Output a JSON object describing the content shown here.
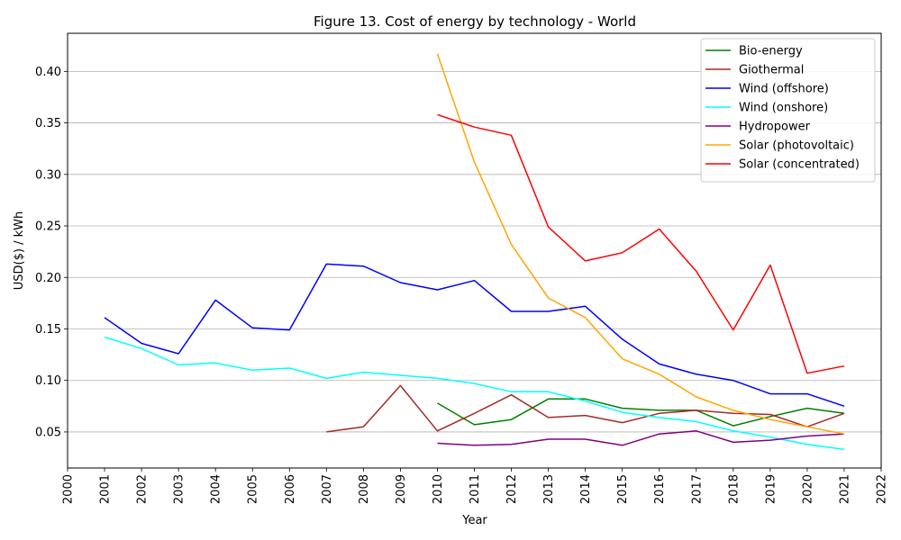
{
  "chart_data": {
    "type": "line",
    "title": "Figure 13. Cost of energy by technology - World",
    "xlabel": "Year",
    "ylabel": "USD($) / kWh",
    "xlim": [
      2000,
      2022
    ],
    "ylim": [
      0.015,
      0.437
    ],
    "x_ticks": [
      "2000",
      "2001",
      "2002",
      "2003",
      "2004",
      "2005",
      "2006",
      "2007",
      "2008",
      "2009",
      "2010",
      "2011",
      "2012",
      "2013",
      "2014",
      "2015",
      "2016",
      "2017",
      "2018",
      "2019",
      "2020",
      "2021",
      "2022"
    ],
    "y_ticks": [
      "0.05",
      "0.10",
      "0.15",
      "0.20",
      "0.25",
      "0.30",
      "0.35",
      "0.40"
    ],
    "grid": "horizontal",
    "legend_position": "top-right",
    "series": [
      {
        "name": "Bio-energy",
        "color": "#008000",
        "points": [
          [
            2010,
            0.078
          ],
          [
            2011,
            0.057
          ],
          [
            2012,
            0.062
          ],
          [
            2013,
            0.082
          ],
          [
            2014,
            0.082
          ],
          [
            2015,
            0.073
          ],
          [
            2016,
            0.071
          ],
          [
            2017,
            0.071
          ],
          [
            2018,
            0.056
          ],
          [
            2019,
            0.065
          ],
          [
            2020,
            0.073
          ],
          [
            2021,
            0.068
          ]
        ]
      },
      {
        "name": "Giothermal",
        "color": "#a52a2a",
        "points": [
          [
            2007,
            0.05
          ],
          [
            2008,
            0.055
          ],
          [
            2009,
            0.095
          ],
          [
            2010,
            0.051
          ],
          [
            2011,
            0.068
          ],
          [
            2012,
            0.086
          ],
          [
            2013,
            0.064
          ],
          [
            2014,
            0.066
          ],
          [
            2015,
            0.059
          ],
          [
            2016,
            0.068
          ],
          [
            2017,
            0.071
          ],
          [
            2018,
            0.068
          ],
          [
            2019,
            0.067
          ],
          [
            2020,
            0.055
          ],
          [
            2021,
            0.068
          ]
        ]
      },
      {
        "name": "Wind (offshore)",
        "color": "#0000ff",
        "points": [
          [
            2001,
            0.161
          ],
          [
            2002,
            0.136
          ],
          [
            2003,
            0.126
          ],
          [
            2004,
            0.178
          ],
          [
            2005,
            0.151
          ],
          [
            2006,
            0.149
          ],
          [
            2007,
            0.213
          ],
          [
            2008,
            0.211
          ],
          [
            2009,
            0.195
          ],
          [
            2010,
            0.188
          ],
          [
            2011,
            0.197
          ],
          [
            2012,
            0.167
          ],
          [
            2013,
            0.167
          ],
          [
            2014,
            0.172
          ],
          [
            2015,
            0.14
          ],
          [
            2016,
            0.116
          ],
          [
            2017,
            0.106
          ],
          [
            2018,
            0.1
          ],
          [
            2019,
            0.087
          ],
          [
            2020,
            0.087
          ],
          [
            2021,
            0.075
          ]
        ]
      },
      {
        "name": "Wind (onshore)",
        "color": "#00ffff",
        "points": [
          [
            2001,
            0.142
          ],
          [
            2002,
            0.131
          ],
          [
            2003,
            0.115
          ],
          [
            2004,
            0.117
          ],
          [
            2005,
            0.11
          ],
          [
            2006,
            0.112
          ],
          [
            2007,
            0.102
          ],
          [
            2008,
            0.108
          ],
          [
            2009,
            0.105
          ],
          [
            2010,
            0.102
          ],
          [
            2011,
            0.097
          ],
          [
            2012,
            0.089
          ],
          [
            2013,
            0.089
          ],
          [
            2014,
            0.08
          ],
          [
            2015,
            0.069
          ],
          [
            2016,
            0.064
          ],
          [
            2017,
            0.06
          ],
          [
            2018,
            0.051
          ],
          [
            2019,
            0.045
          ],
          [
            2020,
            0.038
          ],
          [
            2021,
            0.033
          ]
        ]
      },
      {
        "name": "Hydropower",
        "color": "#800080",
        "points": [
          [
            2010,
            0.039
          ],
          [
            2011,
            0.037
          ],
          [
            2012,
            0.038
          ],
          [
            2013,
            0.043
          ],
          [
            2014,
            0.043
          ],
          [
            2015,
            0.037
          ],
          [
            2016,
            0.048
          ],
          [
            2017,
            0.051
          ],
          [
            2018,
            0.04
          ],
          [
            2019,
            0.042
          ],
          [
            2020,
            0.046
          ],
          [
            2021,
            0.048
          ]
        ]
      },
      {
        "name": "Solar (photovoltaic)",
        "color": "#ffa500",
        "points": [
          [
            2010,
            0.417
          ],
          [
            2011,
            0.312
          ],
          [
            2012,
            0.232
          ],
          [
            2013,
            0.18
          ],
          [
            2014,
            0.161
          ],
          [
            2015,
            0.121
          ],
          [
            2016,
            0.106
          ],
          [
            2017,
            0.084
          ],
          [
            2018,
            0.071
          ],
          [
            2019,
            0.062
          ],
          [
            2020,
            0.055
          ],
          [
            2021,
            0.048
          ]
        ]
      },
      {
        "name": "Solar (concentrated)",
        "color": "#ff0000",
        "points": [
          [
            2010,
            0.358
          ],
          [
            2011,
            0.346
          ],
          [
            2012,
            0.338
          ],
          [
            2013,
            0.249
          ],
          [
            2014,
            0.216
          ],
          [
            2015,
            0.224
          ],
          [
            2016,
            0.247
          ],
          [
            2017,
            0.206
          ],
          [
            2018,
            0.149
          ],
          [
            2019,
            0.212
          ],
          [
            2020,
            0.107
          ],
          [
            2021,
            0.114
          ]
        ]
      }
    ]
  }
}
